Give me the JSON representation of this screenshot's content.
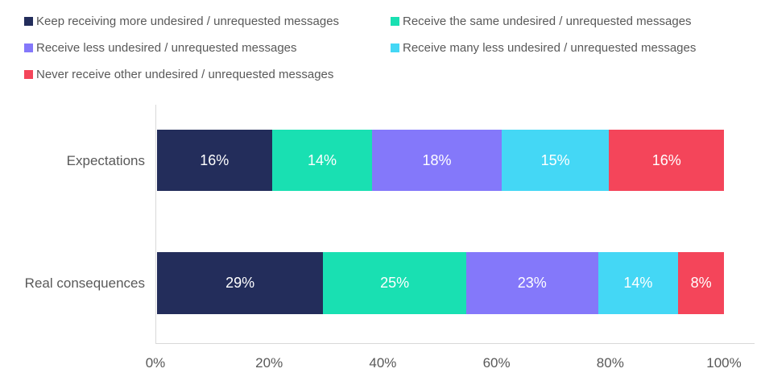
{
  "colors": {
    "navy": "#232d5b",
    "teal": "#19e0b2",
    "purple": "#8478fa",
    "cyan": "#44d7f5",
    "red": "#f4455a",
    "axis_line": "#d9d9d9",
    "text": "#595959",
    "data_label": "#ffffff"
  },
  "chart_data": {
    "type": "bar",
    "orientation": "horizontal",
    "stacked": true,
    "percent_stacked": true,
    "title": "",
    "xlabel": "",
    "ylabel": "",
    "xlim": [
      0,
      100
    ],
    "grid": false,
    "legend_position": "top",
    "categories": [
      "Expectations",
      "Real consequences"
    ],
    "series": [
      {
        "name": "Keep receiving more undesired / unrequested  messages",
        "color": "#232d5b",
        "values": [
          16,
          29
        ]
      },
      {
        "name": "Receive the same undesired / unrequested messages",
        "color": "#19e0b2",
        "values": [
          14,
          25
        ]
      },
      {
        "name": "Receive less undesired / unrequested messages",
        "color": "#8478fa",
        "values": [
          18,
          23
        ]
      },
      {
        "name": "Receive many less undesired / unrequested messages",
        "color": "#44d7f5",
        "values": [
          15,
          14
        ]
      },
      {
        "name": "Never receive other undesired / unrequested messages",
        "color": "#f4455a",
        "values": [
          16,
          8
        ]
      }
    ],
    "data_label_suffix": "%",
    "x_ticks": [
      "0%",
      "20%",
      "40%",
      "60%",
      "80%",
      "100%"
    ]
  }
}
